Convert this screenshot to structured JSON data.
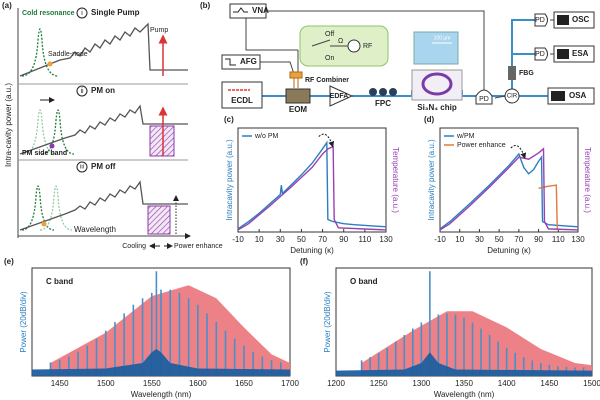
{
  "panel_a": {
    "label": "(a)",
    "y_label": "Intra-cavity power (a.u.)",
    "x_label": "Wavelength",
    "steps": [
      {
        "num": "i",
        "title": "Single Pump"
      },
      {
        "num": "ii",
        "title": "PM on"
      },
      {
        "num": "iii",
        "title": "PM off"
      }
    ],
    "cold_resonance": "Cold resonance",
    "saddle_node": "Saddle-node",
    "pump": "Pump",
    "pm_side_band": "PM side band",
    "cooling": "Cooling",
    "power_enhance": "Power enhance"
  },
  "panel_b": {
    "label": "(b)",
    "vna": "VNA",
    "afg": "AFG",
    "ecdl": "ECDL",
    "eom": "EOM",
    "rf_combiner": "RF Combiner",
    "edfa": "EDFA",
    "fpc": "FPC",
    "chip": "Si₃N₄ chip",
    "scale": "100 μm",
    "off": "Off",
    "on": "On",
    "omega": "Ω",
    "rf": "RF",
    "pd": [
      "PD",
      "PD",
      "PD"
    ],
    "osc": "OSC",
    "esa": "ESA",
    "fbg": "FBG",
    "cir": "CIR",
    "osa": "OSA"
  },
  "chart_data": [
    {
      "type": "line",
      "label": "(c)",
      "x_label": "Detuning (κ)",
      "y_label": "Intracavity power (a.u.)",
      "y2_label": "Temperature (a.u.)",
      "xlim": [
        -10,
        130
      ],
      "xticks": [
        -10,
        10,
        30,
        50,
        70,
        90,
        110,
        130
      ],
      "ylim": [
        0,
        1
      ],
      "y2lim": [
        0,
        1
      ],
      "legend": "upper left",
      "series": [
        {
          "name": "w/o PM",
          "color": "#2a7fc0",
          "x": [
            -10,
            0,
            10,
            20,
            30,
            31,
            32,
            40,
            50,
            60,
            70,
            74,
            75,
            80,
            90,
            100,
            130
          ],
          "values": [
            0.03,
            0.1,
            0.18,
            0.27,
            0.36,
            0.45,
            0.37,
            0.45,
            0.55,
            0.66,
            0.8,
            0.86,
            0.12,
            0.1,
            0.08,
            0.07,
            0.05
          ]
        },
        {
          "color": "#9b3fb5",
          "axis": "y2",
          "x": [
            -10,
            0,
            20,
            40,
            60,
            70,
            75,
            80,
            81,
            85,
            130
          ],
          "values": [
            0.02,
            0.08,
            0.25,
            0.43,
            0.62,
            0.75,
            0.8,
            0.82,
            0.12,
            0.04,
            0.02
          ]
        }
      ]
    },
    {
      "type": "line",
      "label": "(d)",
      "x_label": "Detuning (κ)",
      "y_label": "Intracavity power (a.u.)",
      "y2_label": "Temperature (a.u.)",
      "xlim": [
        -10,
        130
      ],
      "xticks": [
        -10,
        10,
        30,
        50,
        70,
        90,
        110,
        130
      ],
      "ylim": [
        0,
        1
      ],
      "y2lim": [
        0,
        1
      ],
      "legend": "upper left",
      "series": [
        {
          "name": "w/PM",
          "color": "#2a7fc0",
          "x": [
            -10,
            0,
            20,
            40,
            60,
            70,
            75,
            80,
            85,
            90,
            93,
            94,
            100,
            130
          ],
          "values": [
            0.03,
            0.1,
            0.27,
            0.45,
            0.64,
            0.75,
            0.62,
            0.56,
            0.6,
            0.68,
            0.72,
            0.1,
            0.07,
            0.05
          ]
        },
        {
          "name": "Power enhance",
          "color": "#e07b39",
          "x": [
            90,
            100,
            108,
            109
          ],
          "values": [
            0.42,
            0.44,
            0.45,
            0.02
          ]
        },
        {
          "color": "#9b3fb5",
          "axis": "y2",
          "x": [
            -10,
            0,
            20,
            40,
            60,
            70,
            80,
            90,
            95,
            96,
            100,
            130
          ],
          "values": [
            0.02,
            0.08,
            0.25,
            0.43,
            0.62,
            0.72,
            0.7,
            0.76,
            0.8,
            0.1,
            0.03,
            0.02
          ]
        }
      ]
    },
    {
      "type": "spectrum",
      "label": "(e)",
      "annotation": "C band",
      "x_label": "Wavelength (nm)",
      "y_label": "Power (20dB/div)",
      "xlim": [
        1420,
        1700
      ],
      "xticks": [
        1450,
        1500,
        1550,
        1600,
        1650,
        1700
      ],
      "ylim": [
        0,
        1
      ],
      "series": [
        {
          "style": "area",
          "color": "#ec7a82",
          "x": [
            1440,
            1500,
            1550,
            1590,
            1620,
            1650,
            1680,
            1700
          ],
          "values": [
            0.12,
            0.4,
            0.74,
            0.84,
            0.72,
            0.45,
            0.2,
            0.12
          ]
        },
        {
          "style": "stem",
          "color": "#4a90c8",
          "x": [
            1440,
            1450,
            1460,
            1470,
            1480,
            1490,
            1500,
            1510,
            1520,
            1530,
            1540,
            1550,
            1555,
            1560,
            1570,
            1580,
            1590,
            1600,
            1610,
            1620,
            1630,
            1640,
            1650,
            1660,
            1670,
            1680,
            1690
          ],
          "values": [
            0.125,
            0.148,
            0.18,
            0.225,
            0.28,
            0.345,
            0.42,
            0.5,
            0.58,
            0.66,
            0.72,
            0.77,
            0.97,
            0.8,
            0.8,
            0.77,
            0.72,
            0.66,
            0.58,
            0.5,
            0.42,
            0.345,
            0.28,
            0.225,
            0.18,
            0.148,
            0.125
          ]
        },
        {
          "style": "area",
          "color": "#1f5f9f",
          "x": [
            1420,
            1500,
            1540,
            1550,
            1555,
            1560,
            1570,
            1600,
            1700
          ],
          "values": [
            0.06,
            0.07,
            0.12,
            0.22,
            0.25,
            0.22,
            0.12,
            0.07,
            0.06
          ]
        }
      ]
    },
    {
      "type": "spectrum",
      "label": "(f)",
      "annotation": "O band",
      "x_label": "Wavelength (nm)",
      "y_label": "Power (20dB/div)",
      "xlim": [
        1200,
        1500
      ],
      "xticks": [
        1200,
        1250,
        1300,
        1350,
        1400,
        1450,
        1500
      ],
      "ylim": [
        0,
        1
      ],
      "series": [
        {
          "style": "area",
          "color": "#ec7a82",
          "x": [
            1230,
            1290,
            1330,
            1360,
            1400,
            1440,
            1480,
            1500
          ],
          "values": [
            0.12,
            0.42,
            0.6,
            0.6,
            0.45,
            0.25,
            0.12,
            0.1
          ]
        },
        {
          "style": "stem",
          "color": "#4a90c8",
          "x": [
            1230,
            1240,
            1250,
            1260,
            1270,
            1280,
            1290,
            1300,
            1310,
            1320,
            1330,
            1340,
            1350,
            1360,
            1370,
            1380,
            1390,
            1400,
            1410,
            1420,
            1430,
            1440,
            1450,
            1460,
            1470,
            1480,
            1490
          ],
          "values": [
            0.145,
            0.175,
            0.215,
            0.26,
            0.32,
            0.38,
            0.44,
            0.495,
            0.97,
            0.57,
            0.58,
            0.57,
            0.54,
            0.495,
            0.44,
            0.38,
            0.32,
            0.26,
            0.215,
            0.175,
            0.145,
            0.12,
            0.105,
            0.09,
            0.085,
            0.08,
            0.08
          ]
        },
        {
          "style": "area",
          "color": "#1f5f9f",
          "x": [
            1200,
            1280,
            1300,
            1310,
            1320,
            1340,
            1500
          ],
          "values": [
            0.05,
            0.06,
            0.12,
            0.22,
            0.12,
            0.06,
            0.05
          ]
        }
      ]
    }
  ]
}
